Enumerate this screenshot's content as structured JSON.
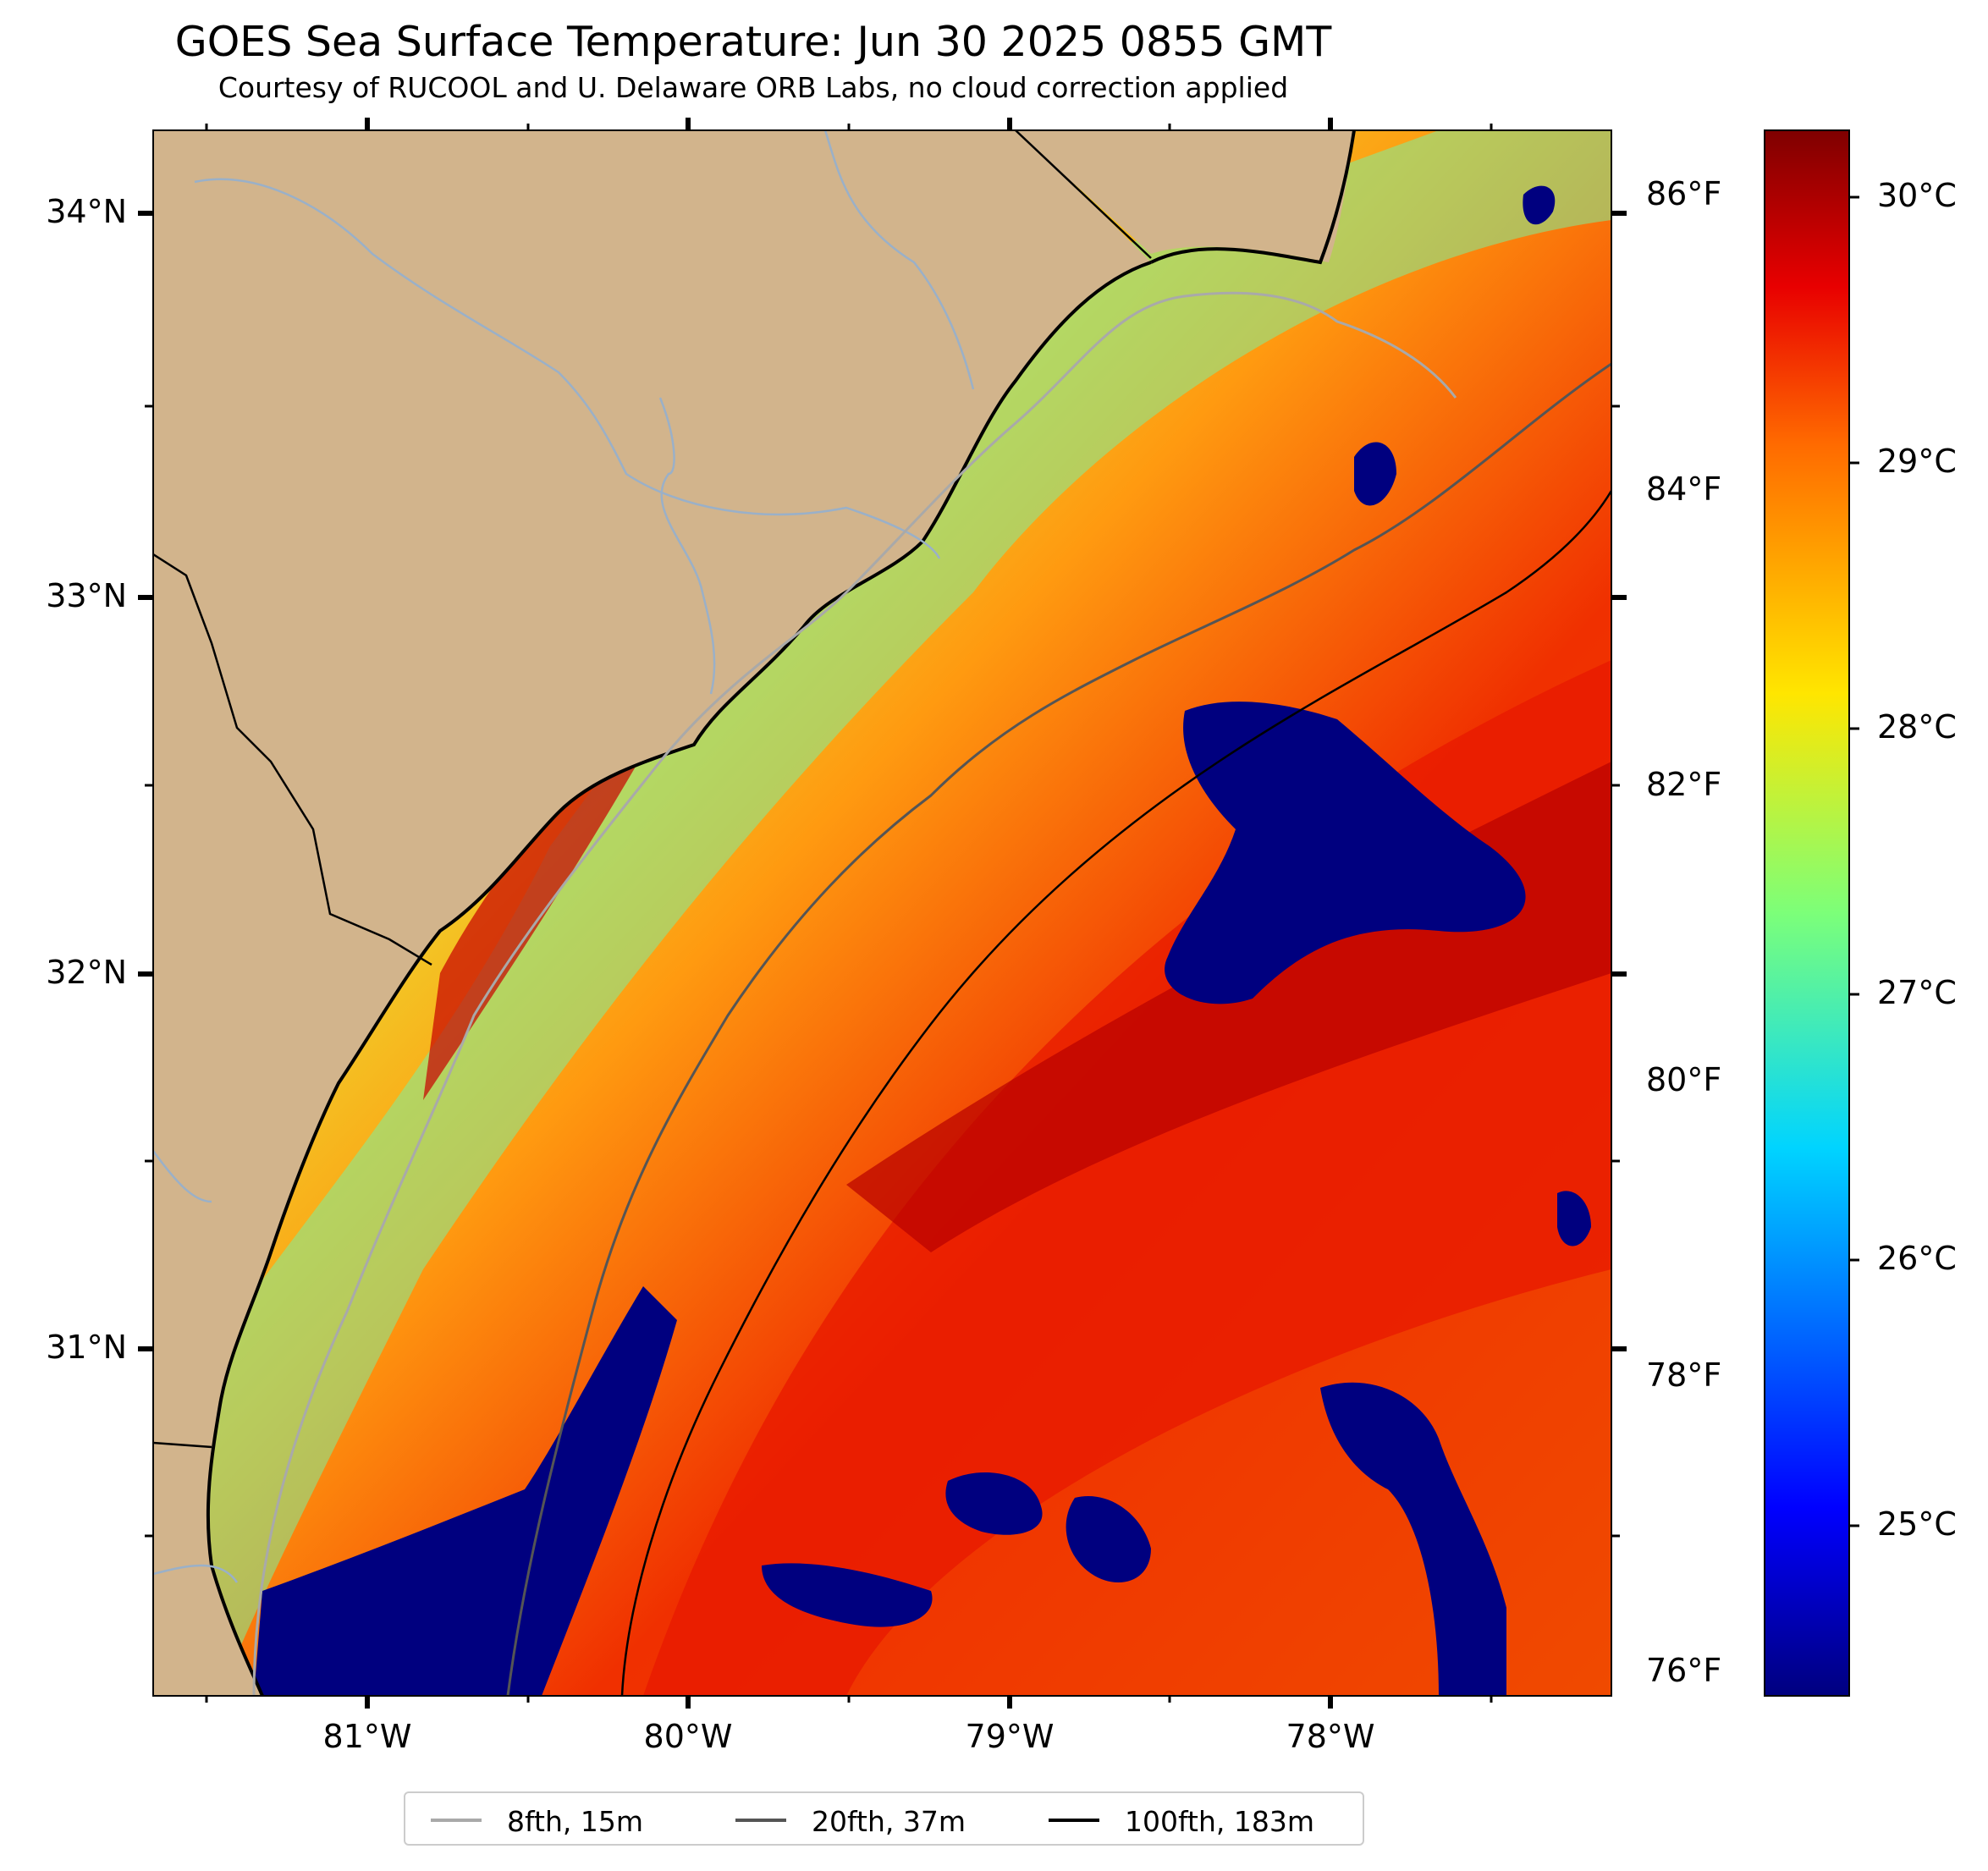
{
  "title": "GOES Sea Surface Temperature: Jun 30 2025 0855 GMT",
  "subtitle": "Courtesy of RUCOOL and U. Delaware ORB Labs, no cloud correction applied",
  "lat_ticks": [
    "34°N",
    "33°N",
    "32°N",
    "31°N"
  ],
  "lon_ticks": [
    "81°W",
    "80°W",
    "79°W",
    "78°W"
  ],
  "fahrenheit_ticks": [
    "86°F",
    "84°F",
    "82°F",
    "80°F",
    "78°F",
    "76°F"
  ],
  "celsius_ticks": [
    "30°C",
    "29°C",
    "28°C",
    "27°C",
    "26°C",
    "25°C"
  ],
  "legend": [
    {
      "label": "8fth, 15m",
      "color": "#a9a9a9"
    },
    {
      "label": "20fth, 37m",
      "color": "#555555"
    },
    {
      "label": "100fth, 183m",
      "color": "#000000"
    }
  ],
  "colors": {
    "land": "#d2b48c",
    "colormap": "jet",
    "cloud": "#00007f",
    "hot": "#b00000"
  }
}
